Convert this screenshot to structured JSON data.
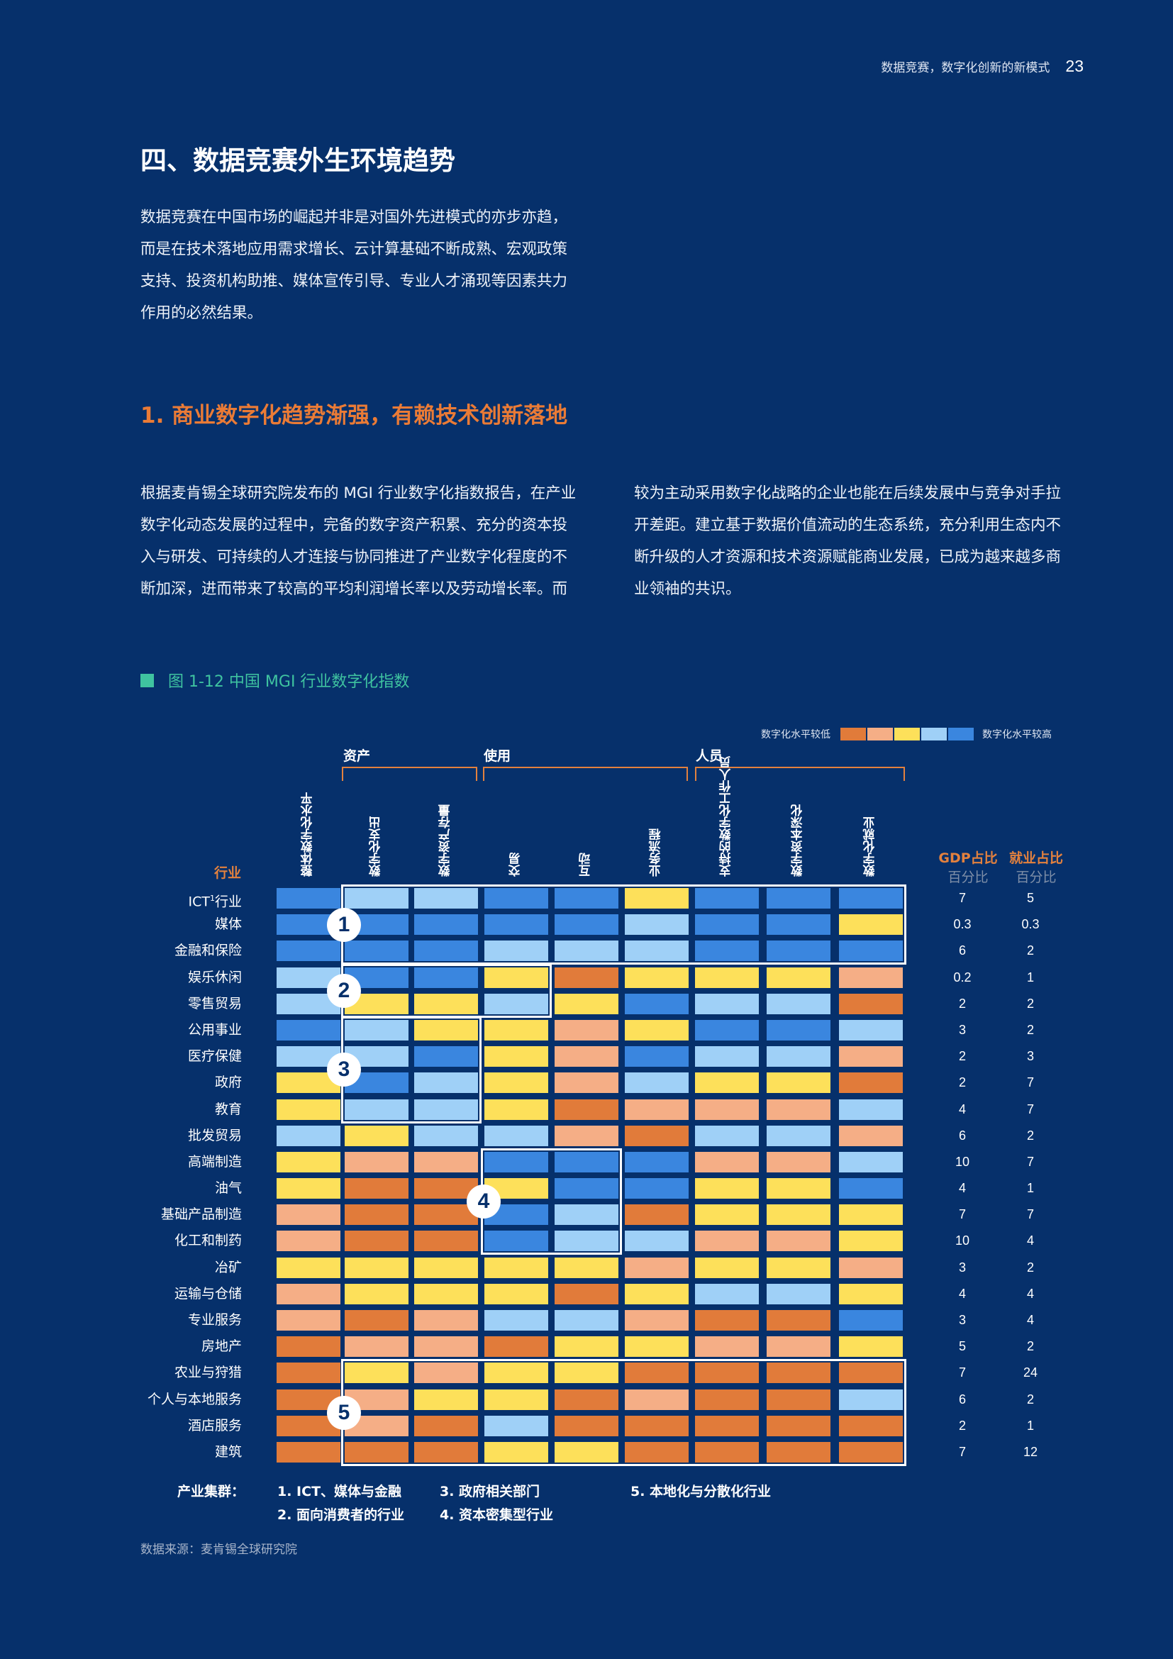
{
  "header": {
    "running_title": "数据竞赛，数字化创新的新模式",
    "page_number": "23"
  },
  "section": {
    "title": "四、数据竞赛外生环境趋势",
    "intro_lines": [
      "数据竞赛在中国市场的崛起并非是对国外先进模式的亦步亦趋，",
      "而是在技术落地应用需求增长、云计算基础不断成熟、宏观政策",
      "支持、投资机构助推、媒体宣传引导、专业人才涌现等因素共力",
      "作用的必然结果。"
    ]
  },
  "subsection": {
    "title": "1. 商业数字化趋势渐强，有赖技术创新落地",
    "left_lines": [
      "根据麦肯锡全球研究院发布的 MGI 行业数字化指数报告，在产业",
      "数字化动态发展的过程中，完备的数字资产积累、充分的资本投",
      "入与研发、可持续的人才连接与协同推进了产业数字化程度的不",
      "断加深，进而带来了较高的平均利润增长率以及劳动增长率。而"
    ],
    "right_lines": [
      "较为主动采用数字化战略的企业也能在后续发展中与竞争对手拉",
      "开差距。建立基于数据价值流动的生态系统，充分利用生态内不",
      "断升级的人才资源和技术资源赋能商业发展，已成为越来越多商",
      "业领袖的共识。"
    ]
  },
  "figure": {
    "caption": "图 1-12 中国 MGI 行业数字化指数",
    "source": "数据来源：麦肯锡全球研究院"
  },
  "chart_data": {
    "type": "heatmap",
    "legend": {
      "low_label": "数字化水平较低",
      "high_label": "数字化水平较高",
      "levels": [
        1,
        2,
        3,
        4,
        5
      ]
    },
    "colors": {
      "1": "#e17b3a",
      "2": "#f5ae86",
      "3": "#fde05a",
      "4": "#9fd0f7",
      "5": "#3a86df"
    },
    "groups": [
      {
        "label": "资产"
      },
      {
        "label": "使用"
      },
      {
        "label": "人员"
      }
    ],
    "row_header": "行业",
    "columns": [
      "整体数字化水平",
      "数字化支出",
      "数字资产存量",
      "交易",
      "互动",
      "业务流程",
      "支持的数字化工作人员",
      "数字资本深化",
      "数字化就业"
    ],
    "stat_headers": [
      {
        "label": "GDP占比",
        "sub": "百分比"
      },
      {
        "label": "就业占比",
        "sub": "百分比"
      }
    ],
    "rows": [
      {
        "industry": "ICT",
        "sup": "1",
        "suffix": "行业",
        "levels": [
          5,
          4,
          4,
          5,
          5,
          3,
          5,
          5,
          5
        ],
        "gdp": "7",
        "employment": "5"
      },
      {
        "industry": "媒体",
        "levels": [
          5,
          5,
          5,
          5,
          5,
          4,
          5,
          5,
          3
        ],
        "gdp": "0.3",
        "employment": "0.3"
      },
      {
        "industry": "金融和保险",
        "levels": [
          5,
          5,
          5,
          4,
          4,
          4,
          5,
          5,
          5
        ],
        "gdp": "6",
        "employment": "2"
      },
      {
        "industry": "娱乐休闲",
        "levels": [
          4,
          5,
          5,
          3,
          1,
          3,
          3,
          3,
          2
        ],
        "gdp": "0.2",
        "employment": "1"
      },
      {
        "industry": "零售贸易",
        "levels": [
          4,
          3,
          3,
          4,
          3,
          5,
          4,
          4,
          1
        ],
        "gdp": "2",
        "employment": "2"
      },
      {
        "industry": "公用事业",
        "levels": [
          5,
          4,
          3,
          3,
          2,
          3,
          5,
          5,
          4
        ],
        "gdp": "3",
        "employment": "2"
      },
      {
        "industry": "医疗保健",
        "levels": [
          4,
          4,
          5,
          3,
          2,
          5,
          4,
          4,
          2
        ],
        "gdp": "2",
        "employment": "3"
      },
      {
        "industry": "政府",
        "levels": [
          3,
          5,
          4,
          3,
          2,
          4,
          3,
          3,
          1
        ],
        "gdp": "2",
        "employment": "7"
      },
      {
        "industry": "教育",
        "levels": [
          3,
          4,
          4,
          3,
          1,
          2,
          2,
          2,
          4
        ],
        "gdp": "4",
        "employment": "7"
      },
      {
        "industry": "批发贸易",
        "levels": [
          4,
          3,
          4,
          4,
          2,
          1,
          4,
          4,
          2
        ],
        "gdp": "6",
        "employment": "2"
      },
      {
        "industry": "高端制造",
        "levels": [
          3,
          2,
          2,
          5,
          5,
          5,
          2,
          2,
          4
        ],
        "gdp": "10",
        "employment": "7"
      },
      {
        "industry": "油气",
        "levels": [
          3,
          1,
          1,
          3,
          5,
          5,
          3,
          3,
          5
        ],
        "gdp": "4",
        "employment": "1"
      },
      {
        "industry": "基础产品制造",
        "levels": [
          2,
          1,
          1,
          5,
          4,
          1,
          3,
          3,
          3
        ],
        "gdp": "7",
        "employment": "7"
      },
      {
        "industry": "化工和制药",
        "levels": [
          2,
          1,
          1,
          5,
          4,
          4,
          2,
          2,
          3
        ],
        "gdp": "10",
        "employment": "4"
      },
      {
        "industry": "冶矿",
        "levels": [
          3,
          3,
          3,
          3,
          3,
          2,
          3,
          3,
          2
        ],
        "gdp": "3",
        "employment": "2"
      },
      {
        "industry": "运输与仓储",
        "levels": [
          2,
          3,
          3,
          3,
          1,
          3,
          4,
          4,
          3
        ],
        "gdp": "4",
        "employment": "4"
      },
      {
        "industry": "专业服务",
        "levels": [
          2,
          1,
          2,
          4,
          4,
          2,
          1,
          1,
          5
        ],
        "gdp": "3",
        "employment": "4"
      },
      {
        "industry": "房地产",
        "levels": [
          1,
          2,
          2,
          1,
          3,
          3,
          2,
          2,
          3
        ],
        "gdp": "5",
        "employment": "2"
      },
      {
        "industry": "农业与狩猎",
        "levels": [
          1,
          3,
          2,
          3,
          3,
          1,
          1,
          1,
          1
        ],
        "gdp": "7",
        "employment": "24"
      },
      {
        "industry": "个人与本地服务",
        "levels": [
          1,
          2,
          3,
          3,
          1,
          2,
          1,
          1,
          4
        ],
        "gdp": "6",
        "employment": "2"
      },
      {
        "industry": "酒店服务",
        "levels": [
          1,
          2,
          1,
          4,
          1,
          1,
          1,
          1,
          1
        ],
        "gdp": "2",
        "employment": "1"
      },
      {
        "industry": "建筑",
        "levels": [
          1,
          1,
          1,
          3,
          3,
          1,
          1,
          1,
          1
        ],
        "gdp": "7",
        "employment": "12"
      }
    ],
    "clusters": [
      {
        "number": "1",
        "rows": [
          0,
          2
        ],
        "cols": [
          1,
          8
        ]
      },
      {
        "number": "2",
        "rows": [
          3,
          4
        ],
        "cols": [
          1,
          3
        ]
      },
      {
        "number": "3",
        "rows": [
          5,
          8
        ],
        "cols": [
          1,
          2
        ]
      },
      {
        "number": "4",
        "rows": [
          10,
          13
        ],
        "cols": [
          3,
          4
        ]
      },
      {
        "number": "5",
        "rows": [
          18,
          21
        ],
        "cols": [
          1,
          8
        ]
      }
    ],
    "cluster_title": "产业集群：",
    "cluster_keys": [
      "1. ICT、媒体与金融",
      "2. 面向消费者的行业",
      "3. 政府相关部门",
      "4. 资本密集型行业",
      "5. 本地化与分散化行业"
    ]
  }
}
